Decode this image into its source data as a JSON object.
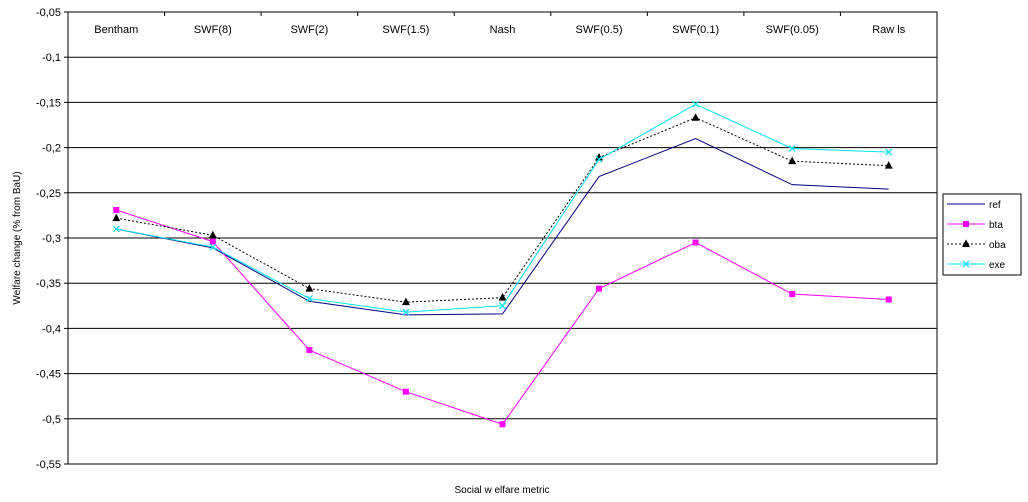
{
  "chart_data": {
    "type": "line",
    "title": "",
    "xlabel": "Social w elfare metric",
    "ylabel": "Welfare change (% from BaU)",
    "ylim": [
      -0.55,
      -0.05
    ],
    "yticks": [
      -0.05,
      -0.1,
      -0.15,
      -0.2,
      -0.25,
      -0.3,
      -0.35,
      -0.4,
      -0.45,
      -0.5,
      -0.55
    ],
    "ytick_labels": [
      "-0,05",
      "-0,1",
      "-0,15",
      "-0,2",
      "-0,25",
      "-0,3",
      "-0,35",
      "-0,4",
      "-0,45",
      "-0,5",
      "-0,55"
    ],
    "categories": [
      "Bentham",
      "SWF(8)",
      "SWF(2)",
      "SWF(1.5)",
      "Nash",
      "SWF(0.5)",
      "SWF(0.1)",
      "SWF(0.05)",
      "Raw ls"
    ],
    "category_axis_position": "top",
    "grid": "horizontal",
    "legend_position": "right",
    "series": [
      {
        "name": "ref",
        "color": "#000080",
        "marker": "none",
        "dash": "solid",
        "values": [
          -0.29,
          -0.311,
          -0.37,
          -0.385,
          -0.384,
          -0.232,
          -0.19,
          -0.241,
          -0.246
        ]
      },
      {
        "name": "bta",
        "color": "#FF00FF",
        "marker": "square",
        "dash": "solid",
        "values": [
          -0.269,
          -0.304,
          -0.424,
          -0.47,
          -0.506,
          -0.356,
          -0.305,
          -0.362,
          -0.368
        ]
      },
      {
        "name": "oba",
        "color": "#000000",
        "marker": "triangle",
        "dash": "dotted",
        "values": [
          -0.278,
          -0.297,
          -0.356,
          -0.371,
          -0.366,
          -0.211,
          -0.167,
          -0.215,
          -0.22
        ]
      },
      {
        "name": "exe",
        "color": "#00E5EE",
        "marker": "x",
        "dash": "solid",
        "values": [
          -0.29,
          -0.31,
          -0.367,
          -0.382,
          -0.375,
          -0.213,
          -0.152,
          -0.201,
          -0.205
        ]
      }
    ]
  }
}
